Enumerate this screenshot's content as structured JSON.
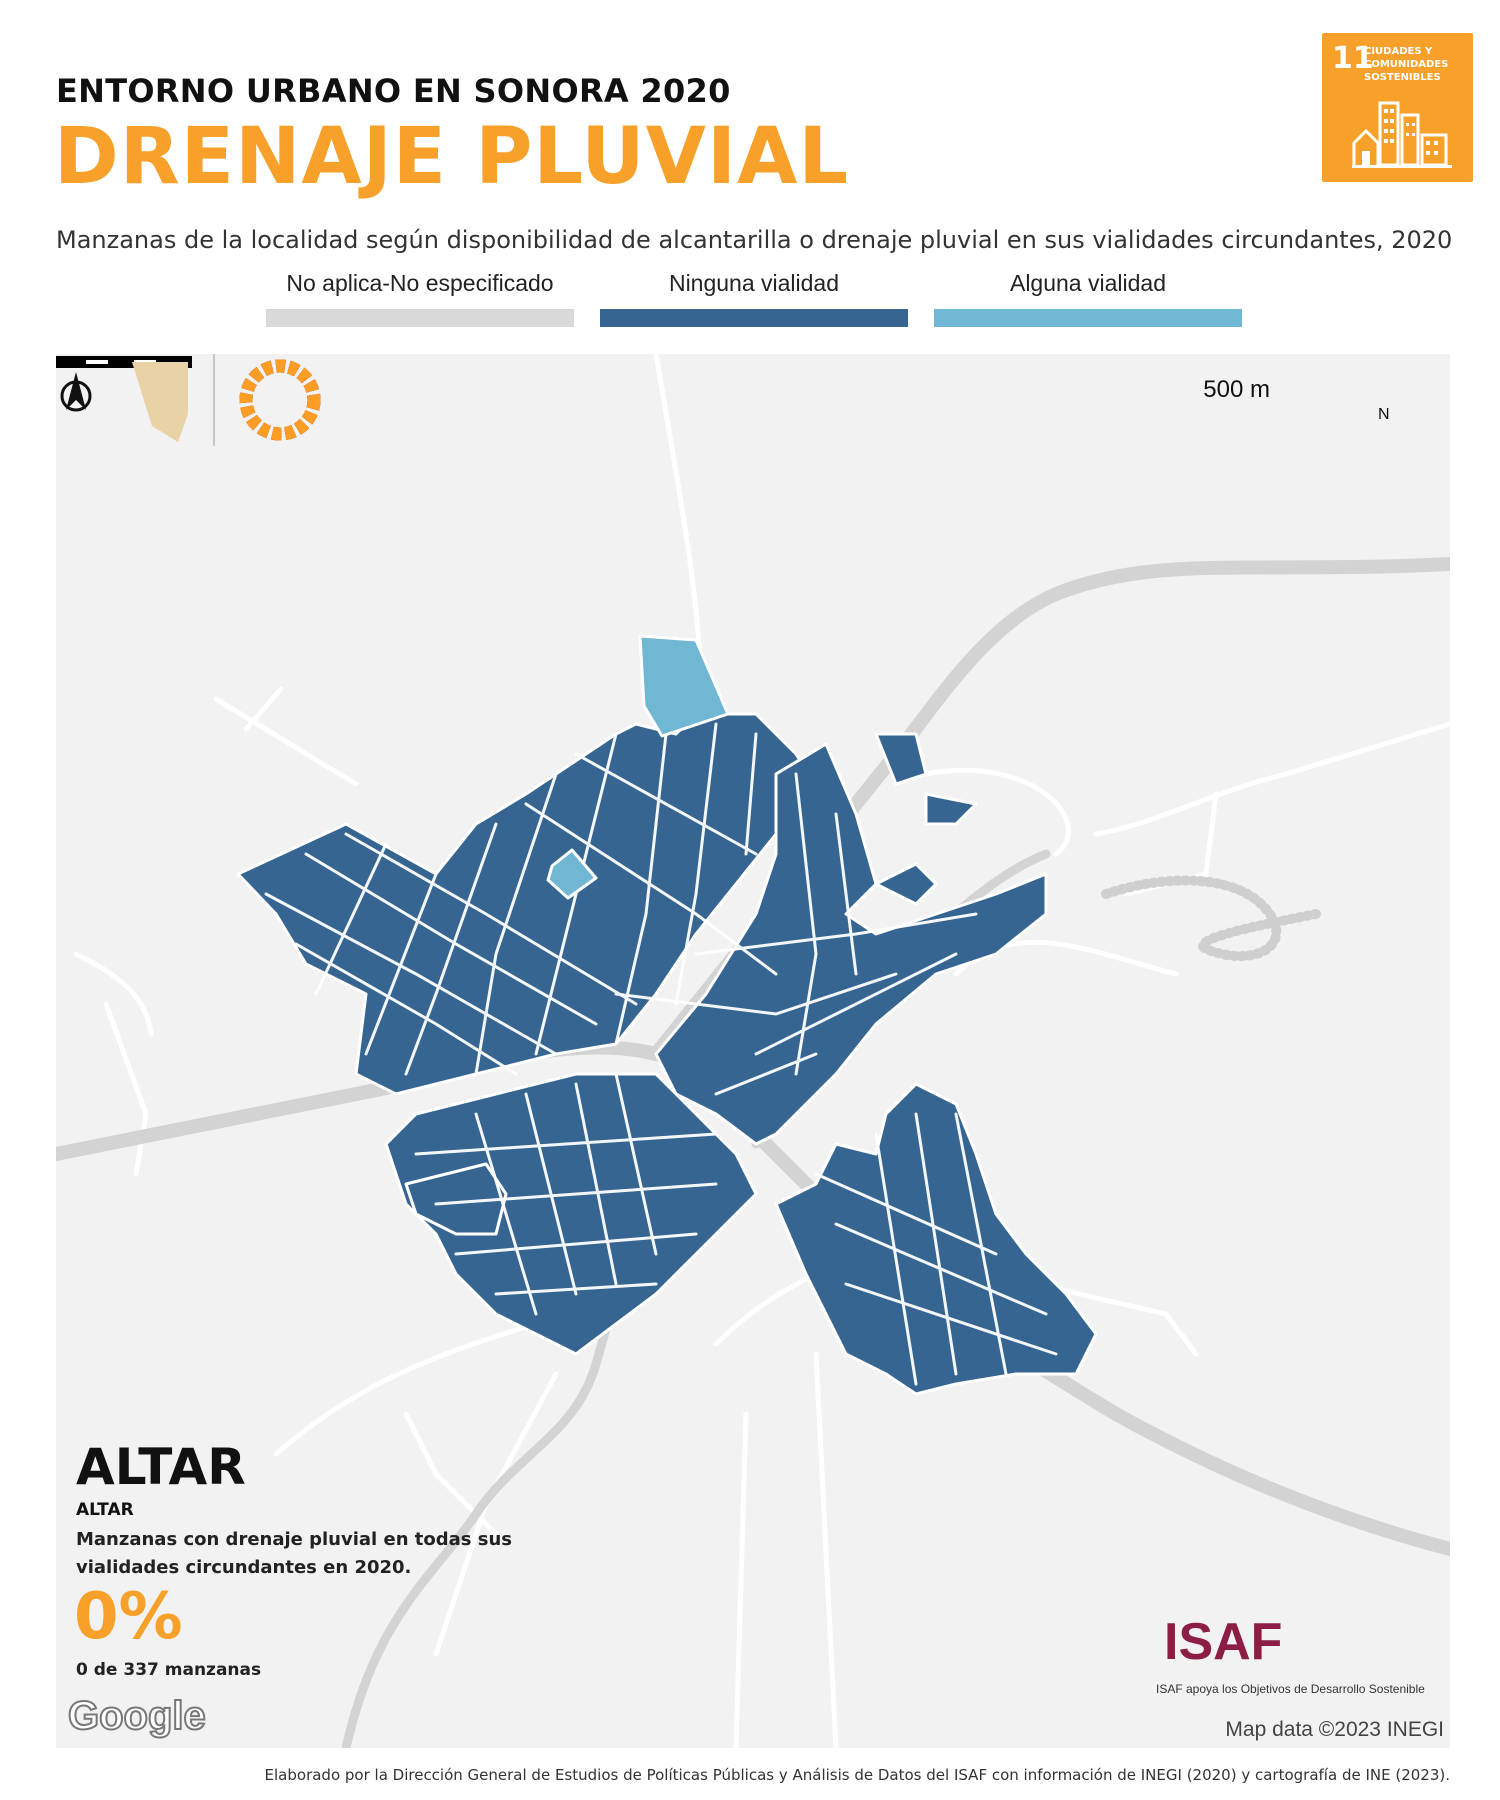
{
  "header": {
    "supertitle": "ENTORNO URBANO EN SONORA 2020",
    "title": "DRENAJE PLUVIAL",
    "subtitle": "Manzanas de la localidad según disponibilidad de alcantarilla o drenaje pluvial en sus vialidades circundantes, 2020"
  },
  "sdg_badge": {
    "number": "11",
    "text": "CIUDADES Y\nCOMUNIDADES\nSOSTENIBLES",
    "color": "#f7a12a"
  },
  "legend": [
    {
      "label": "No aplica-No especificado",
      "color": "#d9d9d9"
    },
    {
      "label": "Ninguna vialidad",
      "color": "#366592"
    },
    {
      "label": "Alguna vialidad",
      "color": "#70b7d4"
    }
  ],
  "map": {
    "scale_label": "500 m",
    "north_label": "N",
    "attribution": "Map data ©2023 INEGI",
    "google_label": "Google"
  },
  "locality": {
    "name": "ALTAR",
    "sub_name": "ALTAR",
    "description": "Manzanas con drenaje pluvial en todas sus vialidades circundantes en 2020.",
    "percent": "0%",
    "count": "0 de 337 manzanas"
  },
  "isaf": {
    "name": "ISAF",
    "tagline": "ISAF apoya los Objetivos de Desarrollo Sostenible"
  },
  "footer": "Elaborado por la Dirección General de Estudios de Políticas Públicas y Análisis de Datos del ISAF con información de INEGI (2020) y cartografía de INE (2023)."
}
